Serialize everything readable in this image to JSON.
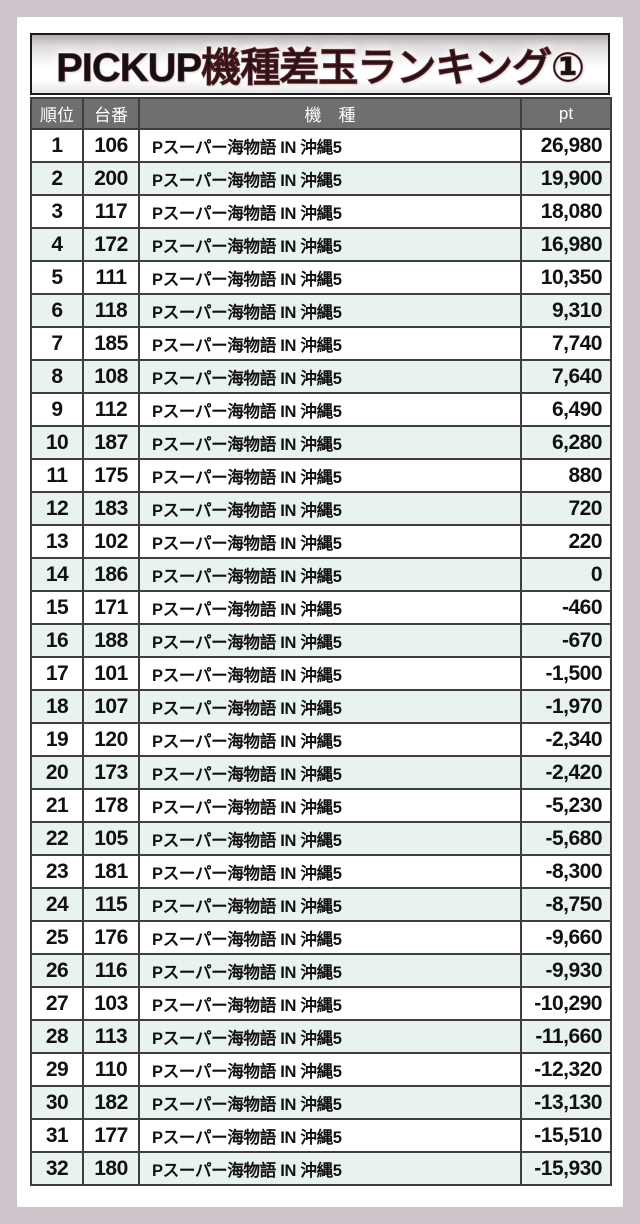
{
  "title": "PICKUP機種差玉ランキング①",
  "colors": {
    "page_background": "#cdc5cb",
    "panel_background": "#ffffff",
    "header_band": "#6f6f6f",
    "row_alternate": "#e9f3ed",
    "cell_border": "#3f3f3f",
    "title_text": "#161013",
    "title_outline": "#5d1a1e",
    "title_glow": "#ffffff"
  },
  "chart_data": {
    "type": "table",
    "title": "PICKUP機種差玉ランキング①",
    "columns": [
      "順位",
      "台番",
      "機　種",
      "pt"
    ],
    "rows": [
      [
        "1",
        "106",
        "Pスーパー海物語 IN 沖縄5",
        "26,980"
      ],
      [
        "2",
        "200",
        "Pスーパー海物語 IN 沖縄5",
        "19,900"
      ],
      [
        "3",
        "117",
        "Pスーパー海物語 IN 沖縄5",
        "18,080"
      ],
      [
        "4",
        "172",
        "Pスーパー海物語 IN 沖縄5",
        "16,980"
      ],
      [
        "5",
        "111",
        "Pスーパー海物語 IN 沖縄5",
        "10,350"
      ],
      [
        "6",
        "118",
        "Pスーパー海物語 IN 沖縄5",
        "9,310"
      ],
      [
        "7",
        "185",
        "Pスーパー海物語 IN 沖縄5",
        "7,740"
      ],
      [
        "8",
        "108",
        "Pスーパー海物語 IN 沖縄5",
        "7,640"
      ],
      [
        "9",
        "112",
        "Pスーパー海物語 IN 沖縄5",
        "6,490"
      ],
      [
        "10",
        "187",
        "Pスーパー海物語 IN 沖縄5",
        "6,280"
      ],
      [
        "11",
        "175",
        "Pスーパー海物語 IN 沖縄5",
        "880"
      ],
      [
        "12",
        "183",
        "Pスーパー海物語 IN 沖縄5",
        "720"
      ],
      [
        "13",
        "102",
        "Pスーパー海物語 IN 沖縄5",
        "220"
      ],
      [
        "14",
        "186",
        "Pスーパー海物語 IN 沖縄5",
        "0"
      ],
      [
        "15",
        "171",
        "Pスーパー海物語 IN 沖縄5",
        "-460"
      ],
      [
        "16",
        "188",
        "Pスーパー海物語 IN 沖縄5",
        "-670"
      ],
      [
        "17",
        "101",
        "Pスーパー海物語 IN 沖縄5",
        "-1,500"
      ],
      [
        "18",
        "107",
        "Pスーパー海物語 IN 沖縄5",
        "-1,970"
      ],
      [
        "19",
        "120",
        "Pスーパー海物語 IN 沖縄5",
        "-2,340"
      ],
      [
        "20",
        "173",
        "Pスーパー海物語 IN 沖縄5",
        "-2,420"
      ],
      [
        "21",
        "178",
        "Pスーパー海物語 IN 沖縄5",
        "-5,230"
      ],
      [
        "22",
        "105",
        "Pスーパー海物語 IN 沖縄5",
        "-5,680"
      ],
      [
        "23",
        "181",
        "Pスーパー海物語 IN 沖縄5",
        "-8,300"
      ],
      [
        "24",
        "115",
        "Pスーパー海物語 IN 沖縄5",
        "-8,750"
      ],
      [
        "25",
        "176",
        "Pスーパー海物語 IN 沖縄5",
        "-9,660"
      ],
      [
        "26",
        "116",
        "Pスーパー海物語 IN 沖縄5",
        "-9,930"
      ],
      [
        "27",
        "103",
        "Pスーパー海物語 IN 沖縄5",
        "-10,290"
      ],
      [
        "28",
        "113",
        "Pスーパー海物語 IN 沖縄5",
        "-11,660"
      ],
      [
        "29",
        "110",
        "Pスーパー海物語 IN 沖縄5",
        "-12,320"
      ],
      [
        "30",
        "182",
        "Pスーパー海物語 IN 沖縄5",
        "-13,130"
      ],
      [
        "31",
        "177",
        "Pスーパー海物語 IN 沖縄5",
        "-15,510"
      ],
      [
        "32",
        "180",
        "Pスーパー海物語 IN 沖縄5",
        "-15,930"
      ]
    ]
  }
}
